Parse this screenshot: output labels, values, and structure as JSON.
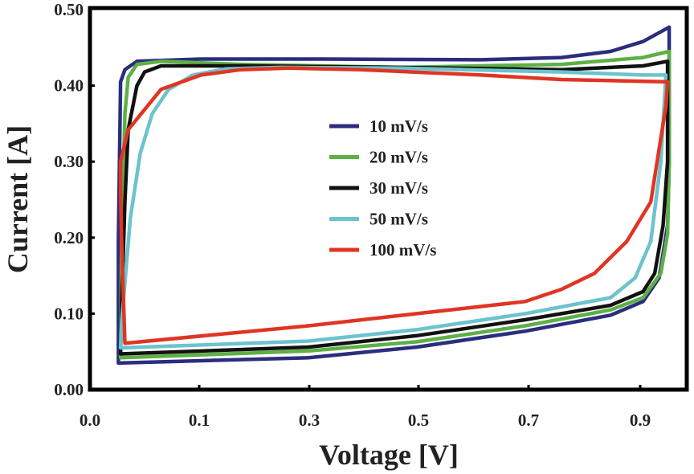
{
  "chart_data": {
    "type": "line",
    "title": "",
    "xlabel": "Voltage [V]",
    "ylabel": "Current [A]",
    "xticks": [
      "0.0",
      "0.1",
      "0.3",
      "0.5",
      "0.7",
      "0.9"
    ],
    "xtick_values": [
      0.0,
      0.1,
      0.3,
      0.5,
      0.7,
      0.9
    ],
    "yticks": [
      "0.00",
      "0.10",
      "0.20",
      "0.30",
      "0.40",
      "0.50"
    ],
    "ytick_values": [
      0.0,
      0.1,
      0.2,
      0.3,
      0.4,
      0.5
    ],
    "xlim": [
      0.0,
      1.0
    ],
    "ylim": [
      0.0,
      0.5
    ],
    "grid": false,
    "legend_position": "center",
    "series": [
      {
        "name": "10 mV/s",
        "color": "#2b2d7e",
        "points": [
          [
            0.026,
            0.035
          ],
          [
            0.299,
            0.042
          ],
          [
            0.497,
            0.056
          ],
          [
            0.694,
            0.077
          ],
          [
            0.847,
            0.098
          ],
          [
            0.905,
            0.116
          ],
          [
            0.934,
            0.147
          ],
          [
            0.949,
            0.216
          ],
          [
            0.952,
            0.3
          ],
          [
            0.952,
            0.477
          ],
          [
            0.905,
            0.458
          ],
          [
            0.847,
            0.445
          ],
          [
            0.759,
            0.437
          ],
          [
            0.614,
            0.434
          ],
          [
            0.322,
            0.435
          ],
          [
            0.103,
            0.435
          ],
          [
            0.043,
            0.432
          ],
          [
            0.032,
            0.421
          ],
          [
            0.028,
            0.405
          ],
          [
            0.026,
            0.195
          ],
          [
            0.026,
            0.035
          ]
        ]
      },
      {
        "name": "20 mV/s",
        "color": "#5db045",
        "points": [
          [
            0.028,
            0.042
          ],
          [
            0.299,
            0.051
          ],
          [
            0.497,
            0.063
          ],
          [
            0.694,
            0.084
          ],
          [
            0.847,
            0.105
          ],
          [
            0.905,
            0.121
          ],
          [
            0.937,
            0.153
          ],
          [
            0.949,
            0.205
          ],
          [
            0.952,
            0.3
          ],
          [
            0.952,
            0.445
          ],
          [
            0.905,
            0.437
          ],
          [
            0.759,
            0.428
          ],
          [
            0.468,
            0.424
          ],
          [
            0.176,
            0.428
          ],
          [
            0.065,
            0.432
          ],
          [
            0.043,
            0.428
          ],
          [
            0.035,
            0.411
          ],
          [
            0.032,
            0.363
          ],
          [
            0.029,
            0.195
          ],
          [
            0.028,
            0.042
          ]
        ]
      },
      {
        "name": "30 mV/s",
        "color": "#111111",
        "points": [
          [
            0.028,
            0.047
          ],
          [
            0.299,
            0.056
          ],
          [
            0.497,
            0.071
          ],
          [
            0.694,
            0.092
          ],
          [
            0.847,
            0.111
          ],
          [
            0.905,
            0.129
          ],
          [
            0.926,
            0.153
          ],
          [
            0.941,
            0.216
          ],
          [
            0.949,
            0.3
          ],
          [
            0.949,
            0.432
          ],
          [
            0.905,
            0.426
          ],
          [
            0.759,
            0.421
          ],
          [
            0.468,
            0.424
          ],
          [
            0.176,
            0.426
          ],
          [
            0.065,
            0.426
          ],
          [
            0.05,
            0.418
          ],
          [
            0.043,
            0.4
          ],
          [
            0.035,
            0.342
          ],
          [
            0.032,
            0.247
          ],
          [
            0.029,
            0.11
          ],
          [
            0.028,
            0.047
          ]
        ]
      },
      {
        "name": "50 mV/s",
        "color": "#6cc3cd",
        "points": [
          [
            0.028,
            0.055
          ],
          [
            0.299,
            0.064
          ],
          [
            0.497,
            0.079
          ],
          [
            0.694,
            0.1
          ],
          [
            0.847,
            0.121
          ],
          [
            0.891,
            0.147
          ],
          [
            0.919,
            0.195
          ],
          [
            0.937,
            0.3
          ],
          [
            0.946,
            0.414
          ],
          [
            0.905,
            0.414
          ],
          [
            0.759,
            0.418
          ],
          [
            0.468,
            0.423
          ],
          [
            0.247,
            0.424
          ],
          [
            0.147,
            0.422
          ],
          [
            0.094,
            0.414
          ],
          [
            0.072,
            0.395
          ],
          [
            0.057,
            0.363
          ],
          [
            0.046,
            0.311
          ],
          [
            0.037,
            0.226
          ],
          [
            0.029,
            0.089
          ],
          [
            0.028,
            0.055
          ]
        ]
      },
      {
        "name": "100 mV/s",
        "color": "#e03524",
        "points": [
          [
            0.032,
            0.061
          ],
          [
            0.299,
            0.084
          ],
          [
            0.497,
            0.1
          ],
          [
            0.694,
            0.116
          ],
          [
            0.759,
            0.132
          ],
          [
            0.818,
            0.153
          ],
          [
            0.876,
            0.195
          ],
          [
            0.919,
            0.247
          ],
          [
            0.946,
            0.373
          ],
          [
            0.949,
            0.405
          ],
          [
            0.759,
            0.408
          ],
          [
            0.614,
            0.414
          ],
          [
            0.395,
            0.421
          ],
          [
            0.262,
            0.423
          ],
          [
            0.176,
            0.421
          ],
          [
            0.103,
            0.414
          ],
          [
            0.065,
            0.395
          ],
          [
            0.035,
            0.342
          ],
          [
            0.028,
            0.3
          ],
          [
            0.028,
            0.258
          ],
          [
            0.029,
            0.195
          ],
          [
            0.032,
            0.061
          ]
        ]
      }
    ]
  }
}
